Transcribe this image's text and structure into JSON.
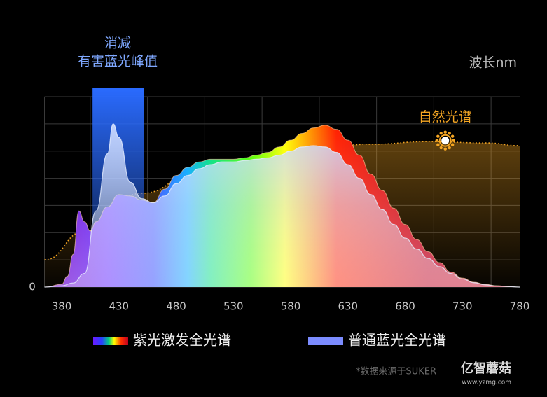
{
  "chart_data": {
    "type": "area",
    "annotation": [
      "消减",
      "有害蓝光峰值"
    ],
    "highlight": [
      407,
      452
    ],
    "xlabel": "波长nm",
    "xlim": [
      365,
      780
    ],
    "xticks": [
      380,
      430,
      480,
      530,
      580,
      630,
      680,
      730,
      780
    ],
    "ylim": [
      0,
      7
    ],
    "yticks": [
      0
    ],
    "ygrid": [
      0,
      1,
      2,
      3,
      4,
      5,
      6,
      7
    ],
    "grid": true,
    "series": [
      {
        "name": "自然光谱",
        "color": "#f5a623",
        "style": "dotted",
        "label": "inline",
        "x": [
          365,
          400,
          450,
          500,
          550,
          600,
          650,
          700,
          750,
          780
        ],
        "values": [
          1.0,
          2.05,
          3.45,
          4.25,
          4.75,
          5.1,
          5.25,
          5.35,
          5.3,
          5.2
        ]
      },
      {
        "name": "紫光激发全光谱",
        "color": "#6a1bff",
        "style": "spectrum",
        "label": "legend",
        "x": [
          365,
          380,
          385,
          390,
          395,
          400,
          405,
          410,
          420,
          430,
          440,
          450,
          460,
          470,
          480,
          490,
          500,
          510,
          520,
          530,
          540,
          550,
          560,
          570,
          580,
          590,
          600,
          610,
          620,
          630,
          640,
          650,
          660,
          670,
          680,
          690,
          700,
          710,
          720,
          730,
          740,
          750,
          760,
          770,
          780
        ],
        "values": [
          0,
          0.1,
          0.4,
          1.2,
          2.8,
          2.4,
          2.06,
          2.4,
          2.95,
          3.4,
          3.35,
          3.2,
          3.1,
          3.6,
          4.1,
          4.4,
          4.6,
          4.7,
          4.7,
          4.7,
          4.75,
          4.85,
          4.95,
          5.15,
          5.4,
          5.65,
          5.85,
          5.95,
          5.8,
          5.4,
          4.85,
          4.15,
          3.55,
          2.9,
          2.3,
          1.75,
          1.3,
          0.9,
          0.55,
          0.33,
          0.18,
          0.1,
          0.05,
          0.02,
          0
        ]
      },
      {
        "name": "普通蓝光全光谱",
        "color": "#7c8cff",
        "style": "soft",
        "label": "legend",
        "x": [
          365,
          380,
          390,
          400,
          410,
          420,
          425,
          430,
          440,
          450,
          460,
          470,
          480,
          490,
          500,
          510,
          520,
          530,
          540,
          550,
          560,
          570,
          580,
          590,
          600,
          610,
          620,
          630,
          640,
          650,
          660,
          670,
          680,
          690,
          700,
          710,
          720,
          730,
          740,
          750,
          760,
          770,
          780
        ],
        "values": [
          0,
          0.05,
          0.15,
          0.5,
          2.8,
          4.9,
          6.0,
          5.5,
          3.85,
          3.25,
          3.1,
          3.35,
          3.8,
          4.1,
          4.35,
          4.5,
          4.6,
          4.6,
          4.65,
          4.7,
          4.75,
          4.85,
          5.0,
          5.15,
          5.2,
          5.15,
          4.95,
          4.5,
          4.0,
          3.4,
          2.85,
          2.3,
          1.8,
          1.4,
          1.05,
          0.75,
          0.5,
          0.3,
          0.16,
          0.08,
          0.04,
          0.02,
          0
        ]
      }
    ],
    "source": "*数据来源于SUKER",
    "watermark": [
      "亿智蘑菇",
      "www.yzmg.com"
    ]
  }
}
